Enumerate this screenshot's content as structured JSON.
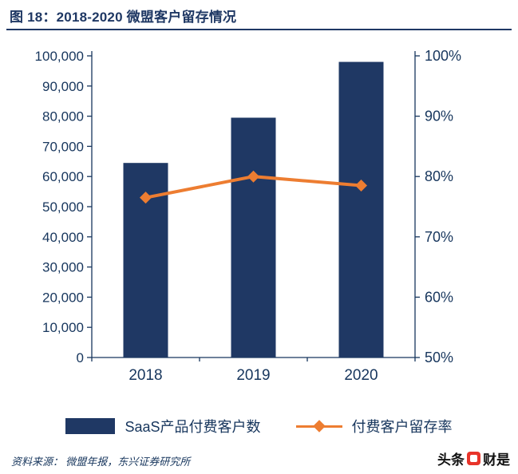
{
  "header": {
    "title": "图 18：2018-2020 微盟客户留存情况"
  },
  "colors": {
    "navy": "#1f3864",
    "orange": "#ed7d31",
    "axis_text": "#17365d",
    "watermark_red": "#e8342a"
  },
  "chart_data": {
    "type": "bar",
    "subtype": "combo-bar-line",
    "title": "图 18：2018-2020 微盟客户留存情况",
    "categories": [
      "2018",
      "2019",
      "2020"
    ],
    "series": [
      {
        "name": "SaaS产品付费客户数",
        "type": "bar",
        "axis": "left",
        "values": [
          64500,
          79500,
          98000
        ],
        "color": "#1f3864"
      },
      {
        "name": "付费客户留存率",
        "type": "line",
        "axis": "right",
        "values": [
          76.5,
          80.0,
          78.5
        ],
        "color": "#ed7d31",
        "marker": "diamond"
      }
    ],
    "left_axis": {
      "min": 0,
      "max": 100000,
      "step": 10000,
      "tick_labels": [
        "0",
        "10,000",
        "20,000",
        "30,000",
        "40,000",
        "50,000",
        "60,000",
        "70,000",
        "80,000",
        "90,000",
        "100,000"
      ]
    },
    "right_axis": {
      "min": 50,
      "max": 100,
      "step": 10,
      "tick_labels": [
        "50%",
        "60%",
        "70%",
        "80%",
        "90%",
        "100%"
      ]
    },
    "grid": false,
    "legend_position": "bottom"
  },
  "legend": [
    {
      "label": "SaaS产品付费客户数"
    },
    {
      "label": "付费客户留存率"
    }
  ],
  "footer": {
    "source": "资料来源： 微盟年报，东兴证券研究所",
    "watermark": {
      "left": "头条",
      "right": "财是"
    }
  }
}
